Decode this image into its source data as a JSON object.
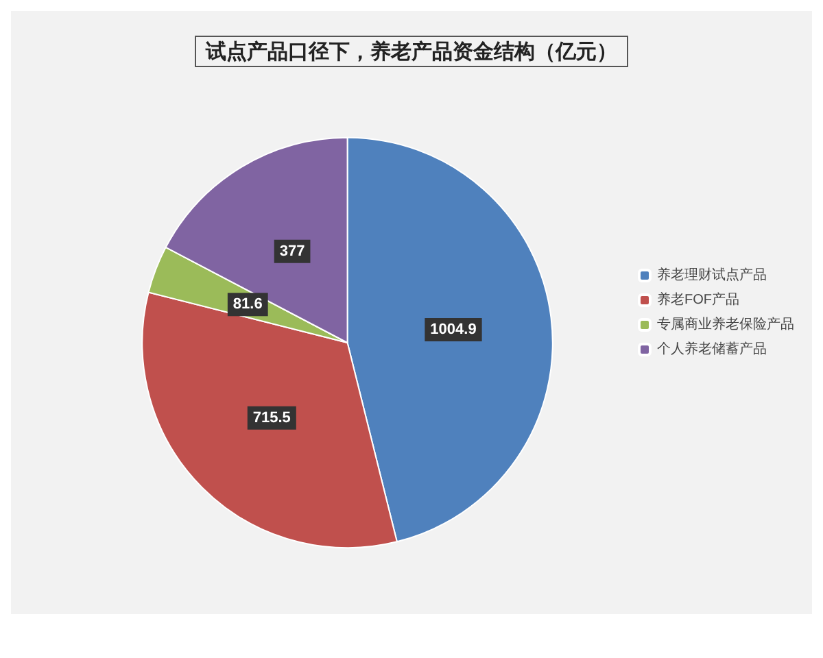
{
  "chart_data": {
    "type": "pie",
    "title": "试点产品口径下，养老产品资金结构（亿元）",
    "categories": [
      "养老理财试点产品",
      "养老FOF产品",
      "专属商业养老保险产品",
      "个人养老储蓄产品"
    ],
    "values": [
      1004.9,
      715.5,
      81.6,
      377
    ],
    "colors": [
      "#4f81bd",
      "#c0504d",
      "#9bbb59",
      "#8064a2"
    ],
    "data_labels": true,
    "legend": "right"
  }
}
